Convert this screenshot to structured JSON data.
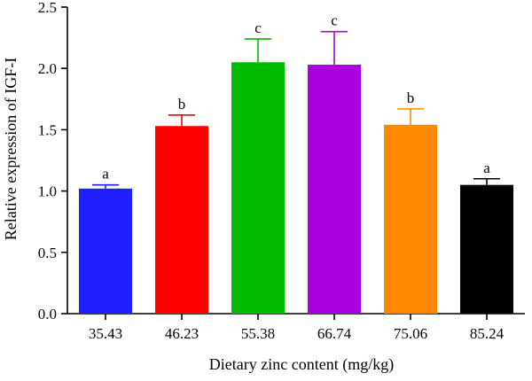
{
  "chart_data": {
    "type": "bar",
    "title": "",
    "xlabel": "Dietary zinc content (mg/kg)",
    "ylabel": "Relative expression of IGF-I",
    "ylim": [
      0,
      2.5
    ],
    "yticks": [
      "0.0",
      "0.5",
      "1.0",
      "1.5",
      "2.0",
      "2.5"
    ],
    "categories": [
      "35.43",
      "46.23",
      "55.38",
      "66.74",
      "75.06",
      "85.24"
    ],
    "values": [
      1.02,
      1.53,
      2.05,
      2.03,
      1.54,
      1.05
    ],
    "errors": [
      0.03,
      0.09,
      0.19,
      0.27,
      0.13,
      0.05
    ],
    "significance": [
      "a",
      "b",
      "c",
      "c",
      "b",
      "a"
    ],
    "colors": [
      "#1f1fff",
      "#ff0000",
      "#00bb00",
      "#aa00dd",
      "#ff8800",
      "#000000"
    ],
    "grid": false,
    "legend": "none"
  }
}
